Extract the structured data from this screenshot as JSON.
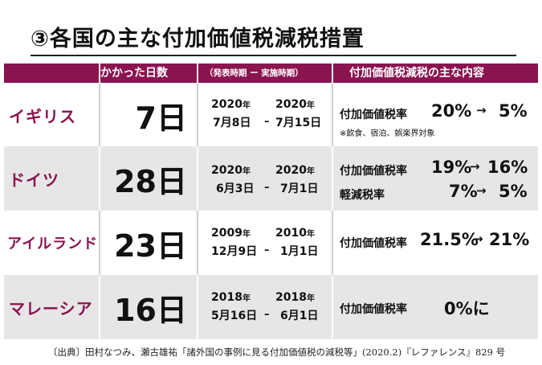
{
  "title": "③各国の主な付加価値税減税措置",
  "header": {
    "days": "かかった日数",
    "period": "（発表時期 ー 実施時期）",
    "content": "付加価値税減税の主な内容"
  },
  "rows": [
    {
      "country": "イギリス",
      "days": "7日",
      "announce_year": "2020",
      "announce_md": "7月8日",
      "impl_year": "2020",
      "impl_md": "7月15日",
      "items": [
        {
          "label": "付加価値税率",
          "from": "20%",
          "arrow": "→",
          "to": "5%"
        }
      ],
      "note": "※飲食、宿泊、娯楽界対象"
    },
    {
      "country": "ドイツ",
      "days": "28日",
      "announce_year": "2020",
      "announce_md": "6月3日",
      "impl_year": "2020",
      "impl_md": "7月1日",
      "items": [
        {
          "label": "付加価値税率",
          "from": "19%",
          "arrow": "→",
          "to": "16%"
        },
        {
          "label": "軽減税率",
          "from": "7%",
          "arrow": "→",
          "to": "5%"
        }
      ]
    },
    {
      "country": "アイルランド",
      "days": "23日",
      "announce_year": "2009",
      "announce_md": "12月9日",
      "impl_year": "2010",
      "impl_md": "1月1日",
      "items": [
        {
          "label": "付加価値税率",
          "from": "21.5%",
          "arrow": "→",
          "to": "21%"
        }
      ]
    },
    {
      "country": "マレーシア",
      "days": "16日",
      "announce_year": "2018",
      "announce_md": "5月16日",
      "impl_year": "2018",
      "impl_md": "6月1日",
      "items": [
        {
          "label": "付加価値税率",
          "value": "0%に"
        }
      ]
    }
  ],
  "year_suffix": "年",
  "dash": "–",
  "source": "〔出典〕田村なつみ、瀬古雄祐「諸外国の事例に見る付加価値税の減税等」(2020.2)『レファレンス』829 号",
  "colors": {
    "accent": "#8a1450",
    "alt_row": "#e6e6e6"
  }
}
